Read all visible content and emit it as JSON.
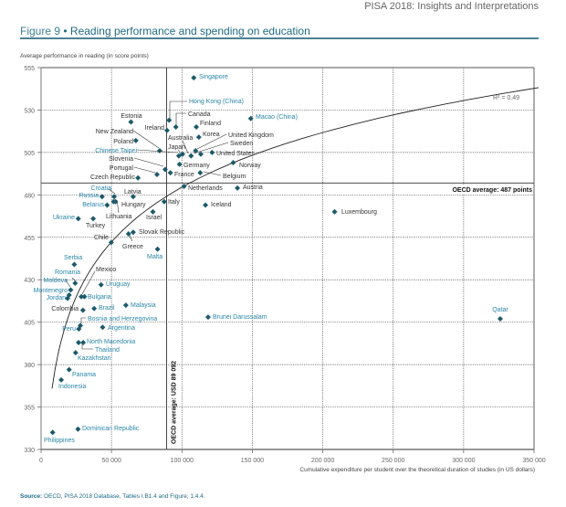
{
  "header": {
    "running_title": "PISA 2018: Insights and Interpretations"
  },
  "figure": {
    "number": "Figure 9",
    "separator": "•",
    "title": "Reading performance and spending on education"
  },
  "source": {
    "label": "Source:",
    "text": "OECD, PISA 2018 Database, Tables I.B1.4 and Figure; 1.4.4."
  },
  "chart_data": {
    "type": "scatter",
    "title": "Reading performance and spending on education",
    "xlabel": "Cumulative expenditure per student over the theoretical duration of studies (in US dollars)",
    "ylabel": "Average performance in reading (in score points)",
    "xlim": [
      0,
      350000
    ],
    "ylim": [
      330,
      555
    ],
    "xticks": [
      0,
      50000,
      100000,
      150000,
      200000,
      250000,
      300000,
      350000
    ],
    "xtick_labels": [
      "0",
      "50 000",
      "100 000",
      "150 000",
      "200 000",
      "250 000",
      "300 000",
      "350 000"
    ],
    "yticks": [
      330,
      355,
      380,
      405,
      430,
      455,
      480,
      505,
      530,
      555
    ],
    "grid": true,
    "colors": {
      "marker": "#1d5a6b",
      "oecd_label": "#333333",
      "partner_label": "#2a86a8",
      "trend": "#222222"
    },
    "trendline": {
      "type": "logarithmic",
      "r_squared_label": "R² = 0.49"
    },
    "reference_lines": {
      "oecd_x": {
        "value": 89092,
        "label": "OECD average: USD 89 092"
      },
      "oecd_y": {
        "value": 487,
        "label": "OECD average: 487 points"
      }
    },
    "points": [
      {
        "name": "Singapore",
        "x": 108400,
        "y": 549,
        "group": "partner"
      },
      {
        "name": "Hong Kong (China)",
        "x": 90900,
        "y": 524,
        "group": "partner"
      },
      {
        "name": "Canada",
        "x": 95700,
        "y": 520,
        "group": "oecd"
      },
      {
        "name": "Ireland",
        "x": 89400,
        "y": 518,
        "group": "oecd"
      },
      {
        "name": "Estonia",
        "x": 63800,
        "y": 523,
        "group": "oecd"
      },
      {
        "name": "Finland",
        "x": 110200,
        "y": 520,
        "group": "oecd"
      },
      {
        "name": "Korea",
        "x": 112000,
        "y": 514,
        "group": "oecd"
      },
      {
        "name": "Macao (China)",
        "x": 148900,
        "y": 525,
        "group": "partner"
      },
      {
        "name": "New Zealand",
        "x": 84200,
        "y": 506,
        "group": "oecd"
      },
      {
        "name": "Poland",
        "x": 67300,
        "y": 512,
        "group": "oecd"
      },
      {
        "name": "Chinese Taipei",
        "x": 97800,
        "y": 503,
        "group": "partner"
      },
      {
        "name": "Japan",
        "x": 100400,
        "y": 504,
        "group": "oecd"
      },
      {
        "name": "Australia",
        "x": 106500,
        "y": 503,
        "group": "oecd"
      },
      {
        "name": "Sweden",
        "x": 109700,
        "y": 506,
        "group": "oecd"
      },
      {
        "name": "United Kingdom",
        "x": 113400,
        "y": 504,
        "group": "oecd"
      },
      {
        "name": "United States",
        "x": 121400,
        "y": 505,
        "group": "oecd"
      },
      {
        "name": "Germany",
        "x": 98300,
        "y": 498,
        "group": "oecd"
      },
      {
        "name": "Norway",
        "x": 136400,
        "y": 499,
        "group": "oecd"
      },
      {
        "name": "Slovenia",
        "x": 88100,
        "y": 495,
        "group": "oecd"
      },
      {
        "name": "France",
        "x": 91800,
        "y": 493,
        "group": "oecd"
      },
      {
        "name": "Portugal",
        "x": 82300,
        "y": 492,
        "group": "oecd"
      },
      {
        "name": "Czech Republic",
        "x": 68800,
        "y": 490,
        "group": "oecd"
      },
      {
        "name": "Belgium",
        "x": 113000,
        "y": 493,
        "group": "oecd"
      },
      {
        "name": "Netherlands",
        "x": 101500,
        "y": 485,
        "group": "oecd"
      },
      {
        "name": "Austria",
        "x": 139400,
        "y": 484,
        "group": "oecd"
      },
      {
        "name": "Luxembourg",
        "x": 208400,
        "y": 470,
        "group": "oecd"
      },
      {
        "name": "Croatia",
        "x": 51900,
        "y": 479,
        "group": "partner"
      },
      {
        "name": "Latvia",
        "x": 65400,
        "y": 479,
        "group": "oecd"
      },
      {
        "name": "Russia",
        "x": 43300,
        "y": 479,
        "group": "partner"
      },
      {
        "name": "Hungary",
        "x": 52800,
        "y": 476,
        "group": "oecd"
      },
      {
        "name": "Belarus",
        "x": 46900,
        "y": 474,
        "group": "partner"
      },
      {
        "name": "Lithuania",
        "x": 51500,
        "y": 476,
        "group": "oecd"
      },
      {
        "name": "Italy",
        "x": 87400,
        "y": 476,
        "group": "oecd"
      },
      {
        "name": "Iceland",
        "x": 116700,
        "y": 474,
        "group": "oecd"
      },
      {
        "name": "Israel",
        "x": 79400,
        "y": 470,
        "group": "oecd"
      },
      {
        "name": "Ukraine",
        "x": 26400,
        "y": 466,
        "group": "partner"
      },
      {
        "name": "Turkey",
        "x": 37000,
        "y": 466,
        "group": "oecd"
      },
      {
        "name": "Slovak Republic",
        "x": 65400,
        "y": 458,
        "group": "oecd"
      },
      {
        "name": "Greece",
        "x": 62100,
        "y": 457,
        "group": "oecd"
      },
      {
        "name": "Chile",
        "x": 49800,
        "y": 452,
        "group": "oecd"
      },
      {
        "name": "Malta",
        "x": 82700,
        "y": 448,
        "group": "partner"
      },
      {
        "name": "Serbia",
        "x": 23600,
        "y": 439,
        "group": "partner"
      },
      {
        "name": "Romania",
        "x": 24200,
        "y": 428,
        "group": "partner"
      },
      {
        "name": "Mexico",
        "x": 28600,
        "y": 420,
        "group": "oecd"
      },
      {
        "name": "Moldova",
        "x": 21000,
        "y": 424,
        "group": "partner"
      },
      {
        "name": "Montenegro",
        "x": 19900,
        "y": 421,
        "group": "partner"
      },
      {
        "name": "Jordan",
        "x": 18800,
        "y": 419,
        "group": "partner"
      },
      {
        "name": "Bulgaria",
        "x": 30800,
        "y": 420,
        "group": "partner"
      },
      {
        "name": "Uruguay",
        "x": 42600,
        "y": 427,
        "group": "partner"
      },
      {
        "name": "Malaysia",
        "x": 60200,
        "y": 415,
        "group": "partner"
      },
      {
        "name": "Colombia",
        "x": 29700,
        "y": 412,
        "group": "oecd"
      },
      {
        "name": "Brazil",
        "x": 37700,
        "y": 413,
        "group": "partner"
      },
      {
        "name": "Bosnia and Herzegovina",
        "x": 27900,
        "y": 403,
        "group": "partner"
      },
      {
        "name": "Peru",
        "x": 26800,
        "y": 401,
        "group": "partner"
      },
      {
        "name": "Argentina",
        "x": 43700,
        "y": 402,
        "group": "partner"
      },
      {
        "name": "North Macedonia",
        "x": 26600,
        "y": 393,
        "group": "partner"
      },
      {
        "name": "Thailand",
        "x": 29900,
        "y": 393,
        "group": "partner"
      },
      {
        "name": "Kazakhstan",
        "x": 24500,
        "y": 387,
        "group": "partner"
      },
      {
        "name": "Panama",
        "x": 19900,
        "y": 377,
        "group": "partner"
      },
      {
        "name": "Indonesia",
        "x": 14300,
        "y": 371,
        "group": "partner"
      },
      {
        "name": "Philippines",
        "x": 8200,
        "y": 340,
        "group": "partner"
      },
      {
        "name": "Dominican Republic",
        "x": 26200,
        "y": 342,
        "group": "partner"
      },
      {
        "name": "Brunei Darussalam",
        "x": 118600,
        "y": 408,
        "group": "partner"
      },
      {
        "name": "Qatar",
        "x": 326000,
        "y": 407,
        "group": "partner"
      }
    ]
  }
}
